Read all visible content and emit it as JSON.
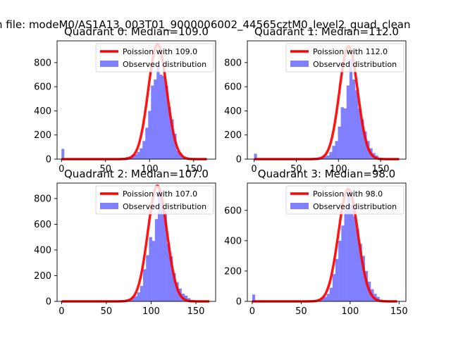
{
  "figure": {
    "suptitle": "n file: modeM0/AS1A13_003T01_9000006002_44565cztM0_level2_quad_clean"
  },
  "chart_data": [
    {
      "type": "bar",
      "title": "Quadrant 0: Median=109.0",
      "xlim": [
        -5,
        175
      ],
      "ylim": [
        0,
        980
      ],
      "xticks": [
        0,
        50,
        100,
        150
      ],
      "yticks": [
        0,
        200,
        400,
        600,
        800
      ],
      "legend": {
        "placement": "top-right",
        "line_label": "Poission with 109.0",
        "hist_label": "Observed distribution"
      },
      "line": {
        "mean": 109,
        "peak": 950,
        "sigma": 10.5,
        "xrange": [
          0,
          165
        ]
      },
      "histogram": {
        "bin_width": 3.2,
        "outliers": [
          {
            "x": 0,
            "y": 85
          }
        ],
        "bins": [
          [
            60,
            3
          ],
          [
            63.2,
            5
          ],
          [
            66.4,
            6
          ],
          [
            69.6,
            10
          ],
          [
            72.8,
            18
          ],
          [
            76,
            22
          ],
          [
            79.2,
            35
          ],
          [
            82.4,
            40
          ],
          [
            85.6,
            60
          ],
          [
            88.8,
            90
          ],
          [
            92,
            150
          ],
          [
            95.2,
            260
          ],
          [
            98.4,
            400
          ],
          [
            101.6,
            610
          ],
          [
            104.8,
            660
          ],
          [
            108,
            780
          ],
          [
            111.2,
            700
          ],
          [
            114.4,
            690
          ],
          [
            117.6,
            610
          ],
          [
            120.8,
            430
          ],
          [
            124,
            330
          ],
          [
            127.2,
            210
          ],
          [
            130.4,
            70
          ],
          [
            133.6,
            50
          ],
          [
            136.8,
            25
          ],
          [
            140,
            12
          ],
          [
            143.2,
            6
          ],
          [
            146.4,
            3
          ]
        ]
      }
    },
    {
      "type": "bar",
      "title": "Quadrant 1: Median=112.0",
      "xlim": [
        -8,
        180
      ],
      "ylim": [
        0,
        980
      ],
      "xticks": [
        0,
        50,
        100,
        150
      ],
      "yticks": [
        0,
        200,
        400,
        600,
        800
      ],
      "legend": {
        "placement": "top-right",
        "line_label": "Poission with 112.0",
        "hist_label": "Observed distribution"
      },
      "line": {
        "mean": 112,
        "peak": 935,
        "sigma": 10.8,
        "xrange": [
          0,
          172
        ]
      },
      "histogram": {
        "bin_width": 3.4,
        "outliers": [
          {
            "x": 0,
            "y": 45
          }
        ],
        "bins": [
          [
            62,
            4
          ],
          [
            65.4,
            6
          ],
          [
            68.8,
            8
          ],
          [
            72.2,
            12
          ],
          [
            75.6,
            15
          ],
          [
            79,
            20
          ],
          [
            82.4,
            25
          ],
          [
            85.8,
            30
          ],
          [
            89.2,
            60
          ],
          [
            92.6,
            110
          ],
          [
            96,
            150
          ],
          [
            99.4,
            270
          ],
          [
            102.8,
            430
          ],
          [
            106.2,
            420
          ],
          [
            109.6,
            610
          ],
          [
            113,
            830
          ],
          [
            116.4,
            660
          ],
          [
            119.8,
            570
          ],
          [
            123.2,
            420
          ],
          [
            126.6,
            330
          ],
          [
            130,
            230
          ],
          [
            133.4,
            150
          ],
          [
            136.8,
            90
          ],
          [
            140.2,
            50
          ],
          [
            143.6,
            30
          ],
          [
            147,
            10
          ],
          [
            150.4,
            5
          ]
        ]
      }
    },
    {
      "type": "bar",
      "title": "Quadrant 2: Median=107.0",
      "xlim": [
        -5,
        172
      ],
      "ylim": [
        0,
        920
      ],
      "xticks": [
        0,
        50,
        100,
        150
      ],
      "yticks": [
        0,
        200,
        400,
        600,
        800
      ],
      "legend": {
        "placement": "top-right",
        "line_label": "Poission with 107.0",
        "hist_label": "Observed distribution"
      },
      "line": {
        "mean": 107,
        "peak": 900,
        "sigma": 10.6,
        "xrange": [
          0,
          165
        ]
      },
      "histogram": {
        "bin_width": 3.3,
        "outliers": [],
        "bins": [
          [
            58,
            4
          ],
          [
            61.3,
            6
          ],
          [
            64.6,
            8
          ],
          [
            67.9,
            10
          ],
          [
            71.2,
            15
          ],
          [
            74.5,
            20
          ],
          [
            77.8,
            35
          ],
          [
            81.1,
            40
          ],
          [
            84.4,
            70
          ],
          [
            87.7,
            120
          ],
          [
            91,
            250
          ],
          [
            94.3,
            360
          ],
          [
            97.6,
            500
          ],
          [
            100.9,
            470
          ],
          [
            104.2,
            640
          ],
          [
            107.5,
            870
          ],
          [
            110.8,
            760
          ],
          [
            114.1,
            700
          ],
          [
            117.4,
            450
          ],
          [
            120.7,
            350
          ],
          [
            124,
            220
          ],
          [
            127.3,
            150
          ],
          [
            130.6,
            100
          ],
          [
            133.9,
            60
          ],
          [
            137.2,
            45
          ],
          [
            140.5,
            25
          ],
          [
            143.8,
            12
          ],
          [
            147.1,
            5
          ]
        ]
      }
    },
    {
      "type": "bar",
      "title": "Quadrant 3: Median=98.0",
      "xlim": [
        -5,
        157
      ],
      "ylim": [
        0,
        780
      ],
      "xticks": [
        0,
        50,
        100,
        150
      ],
      "yticks": [
        0,
        200,
        400,
        600
      ],
      "legend": {
        "placement": "top-right",
        "line_label": "Poission with 98.0",
        "hist_label": "Observed distribution"
      },
      "line": {
        "mean": 98,
        "peak": 740,
        "sigma": 10.0,
        "xrange": [
          0,
          148
        ]
      },
      "histogram": {
        "bin_width": 3.0,
        "outliers": [
          {
            "x": 0,
            "y": 45
          }
        ],
        "bins": [
          [
            55,
            4
          ],
          [
            58,
            6
          ],
          [
            61,
            8
          ],
          [
            64,
            10
          ],
          [
            67,
            15
          ],
          [
            70,
            25
          ],
          [
            73,
            30
          ],
          [
            76,
            50
          ],
          [
            79,
            90
          ],
          [
            82,
            180
          ],
          [
            85,
            280
          ],
          [
            88,
            400
          ],
          [
            91,
            500
          ],
          [
            94,
            610
          ],
          [
            97,
            700
          ],
          [
            100,
            640
          ],
          [
            103,
            560
          ],
          [
            106,
            470
          ],
          [
            109,
            380
          ],
          [
            112,
            300
          ],
          [
            115,
            200
          ],
          [
            118,
            130
          ],
          [
            121,
            80
          ],
          [
            124,
            50
          ],
          [
            127,
            30
          ],
          [
            130,
            12
          ],
          [
            133,
            5
          ]
        ]
      }
    }
  ],
  "colors": {
    "line": "#ff0000",
    "hist": "#8080ff",
    "axis": "#000000"
  }
}
